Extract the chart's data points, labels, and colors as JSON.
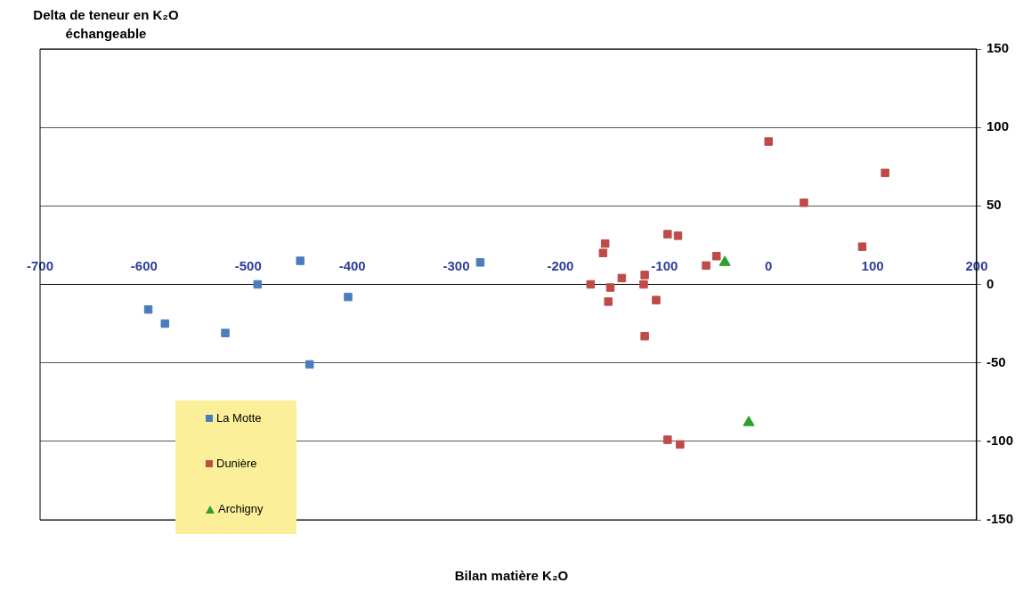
{
  "chart_data": {
    "type": "scatter",
    "ylabel": "Delta de teneur en K₂O échangeable",
    "xlabel": "Bilan  matière K₂O",
    "xlim": [
      -700,
      200
    ],
    "xticks": [
      -700,
      -600,
      -500,
      -400,
      -300,
      -200,
      -100,
      0,
      100,
      200
    ],
    "ylim": [
      -150,
      150
    ],
    "yticks": [
      -150,
      -100,
      -50,
      0,
      50,
      100,
      150
    ],
    "grid": "y",
    "legend": "bottom left",
    "series": [
      {
        "name": "La Motte",
        "color": "#4a7ebb",
        "marker": "square",
        "x": [
          -596,
          -580,
          -522,
          -491,
          -450,
          -441,
          -404,
          -277
        ],
        "values": [
          -16,
          -25,
          -31,
          0,
          15,
          -51,
          -8,
          14
        ]
      },
      {
        "name": "Dunière",
        "color": "#be4b48",
        "marker": "square",
        "x": [
          0,
          34,
          112,
          90,
          -171,
          -157,
          -159,
          -152,
          -154,
          -141,
          -120,
          -119,
          -119,
          -108,
          -97,
          -87,
          -60,
          -50,
          -97,
          -85
        ],
        "values": [
          91,
          52,
          71,
          24,
          0,
          26,
          20,
          -2,
          -11,
          4,
          0,
          6,
          -33,
          -10,
          32,
          31,
          12,
          18,
          -99,
          -102
        ]
      },
      {
        "name": "Archigny",
        "color": "#2ca02c",
        "marker": "triangle",
        "x": [
          -42,
          -19
        ],
        "values": [
          14,
          -88
        ]
      }
    ]
  }
}
